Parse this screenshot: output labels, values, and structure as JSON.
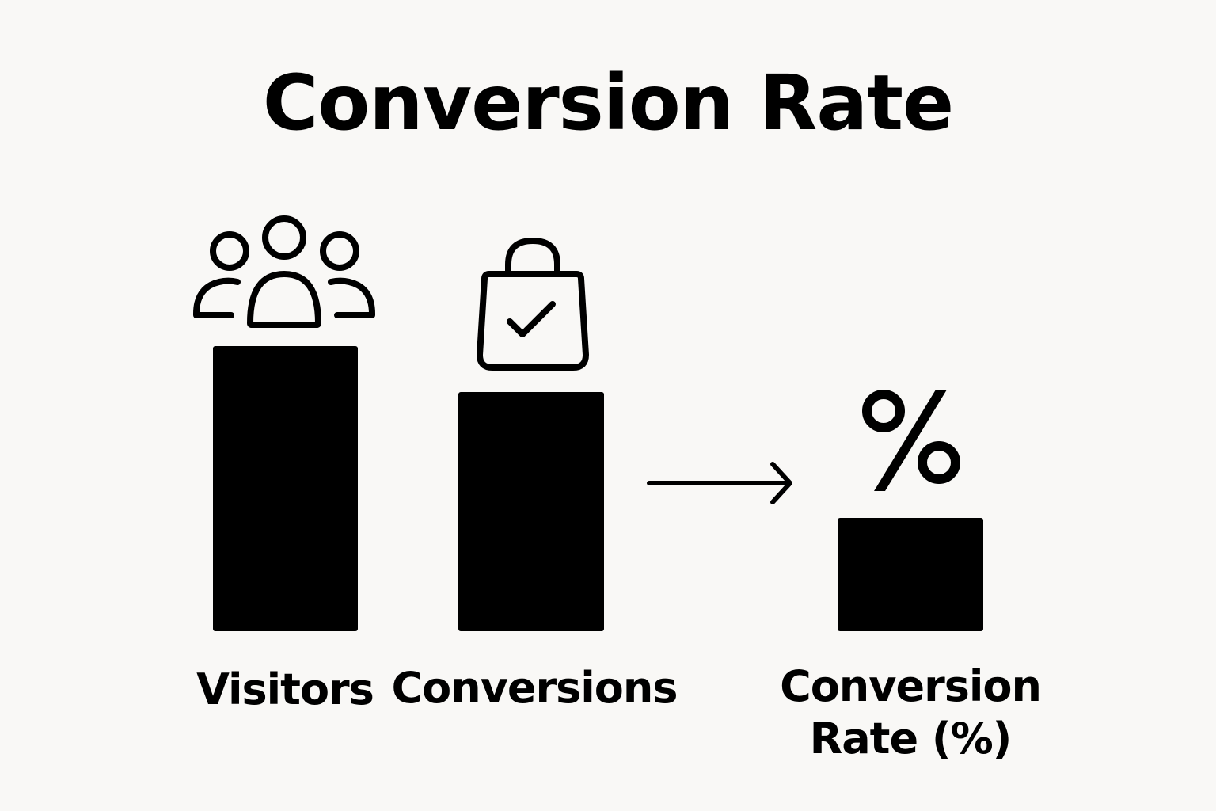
{
  "title": "Conversion Rate",
  "items": [
    {
      "label": "Visitors",
      "icon": "people-group-icon",
      "relative_size": 1.0
    },
    {
      "label": "Conversions",
      "icon": "shopping-bag-check-icon",
      "relative_size": 0.84
    },
    {
      "label_lines": [
        "Conversion",
        "Rate (%)"
      ],
      "icon": "percent-icon",
      "relative_size": 0.39
    }
  ],
  "connector": {
    "icon": "arrow-right-icon"
  },
  "colors": {
    "background": "#f9f8f6",
    "ink": "#000000"
  }
}
